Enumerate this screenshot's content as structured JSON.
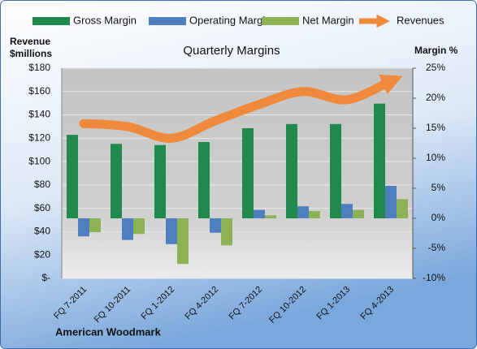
{
  "chart_data": {
    "type": "bar",
    "title": "Quarterly Margins",
    "ylabel": [
      "Revenue",
      "$millions"
    ],
    "y2label": "Margin %",
    "footer": "American Woodmark",
    "categories": [
      "FQ 7-2011",
      "FQ 10-2011",
      "FQ 1-2012",
      "FQ 4-2012",
      "FQ 7-2012",
      "FQ 10-2012",
      "FQ 1-2013",
      "FQ 4-2013"
    ],
    "series": [
      {
        "name": "Gross Margin",
        "type": "bar",
        "axis": "y2",
        "color": "#1f8a4c",
        "values": [
          13.9,
          12.4,
          12.2,
          12.7,
          15.0,
          15.7,
          15.7,
          19.1
        ]
      },
      {
        "name": "Operating Margin",
        "type": "bar",
        "axis": "y2",
        "color": "#4f7fbf",
        "values": [
          -3.0,
          -3.6,
          -4.3,
          -2.4,
          1.4,
          2.0,
          2.4,
          5.4
        ]
      },
      {
        "name": "Net Margin",
        "type": "bar",
        "axis": "y2",
        "color": "#8db255",
        "values": [
          -2.3,
          -2.6,
          -7.6,
          -4.5,
          0.5,
          1.2,
          1.4,
          3.2
        ]
      },
      {
        "name": "Revenues",
        "type": "line",
        "color": "#ef8a3c",
        "values": [
          132.6,
          130,
          120,
          135,
          149,
          160,
          153,
          169
        ]
      }
    ],
    "ylim": [
      0,
      180
    ],
    "yticks": [
      {
        "value": 0,
        "label": "$-"
      },
      {
        "value": 20,
        "label": "$20"
      },
      {
        "value": 40,
        "label": "$40"
      },
      {
        "value": 60,
        "label": "$60"
      },
      {
        "value": 80,
        "label": "$80"
      },
      {
        "value": 100,
        "label": "$100"
      },
      {
        "value": 120,
        "label": "$120"
      },
      {
        "value": 140,
        "label": "$140"
      },
      {
        "value": 160,
        "label": "$160"
      },
      {
        "value": 180,
        "label": "$180"
      }
    ],
    "y2lim": [
      -10,
      25
    ],
    "y2ticks": [
      {
        "value": -10,
        "label": "-10%"
      },
      {
        "value": -5,
        "label": "-5%"
      },
      {
        "value": 0,
        "label": "0%"
      },
      {
        "value": 5,
        "label": "5%"
      },
      {
        "value": 10,
        "label": "10%"
      },
      {
        "value": 15,
        "label": "15%"
      },
      {
        "value": 20,
        "label": "20%"
      },
      {
        "value": 25,
        "label": "25%"
      }
    ],
    "grid": true,
    "legend": "top"
  }
}
